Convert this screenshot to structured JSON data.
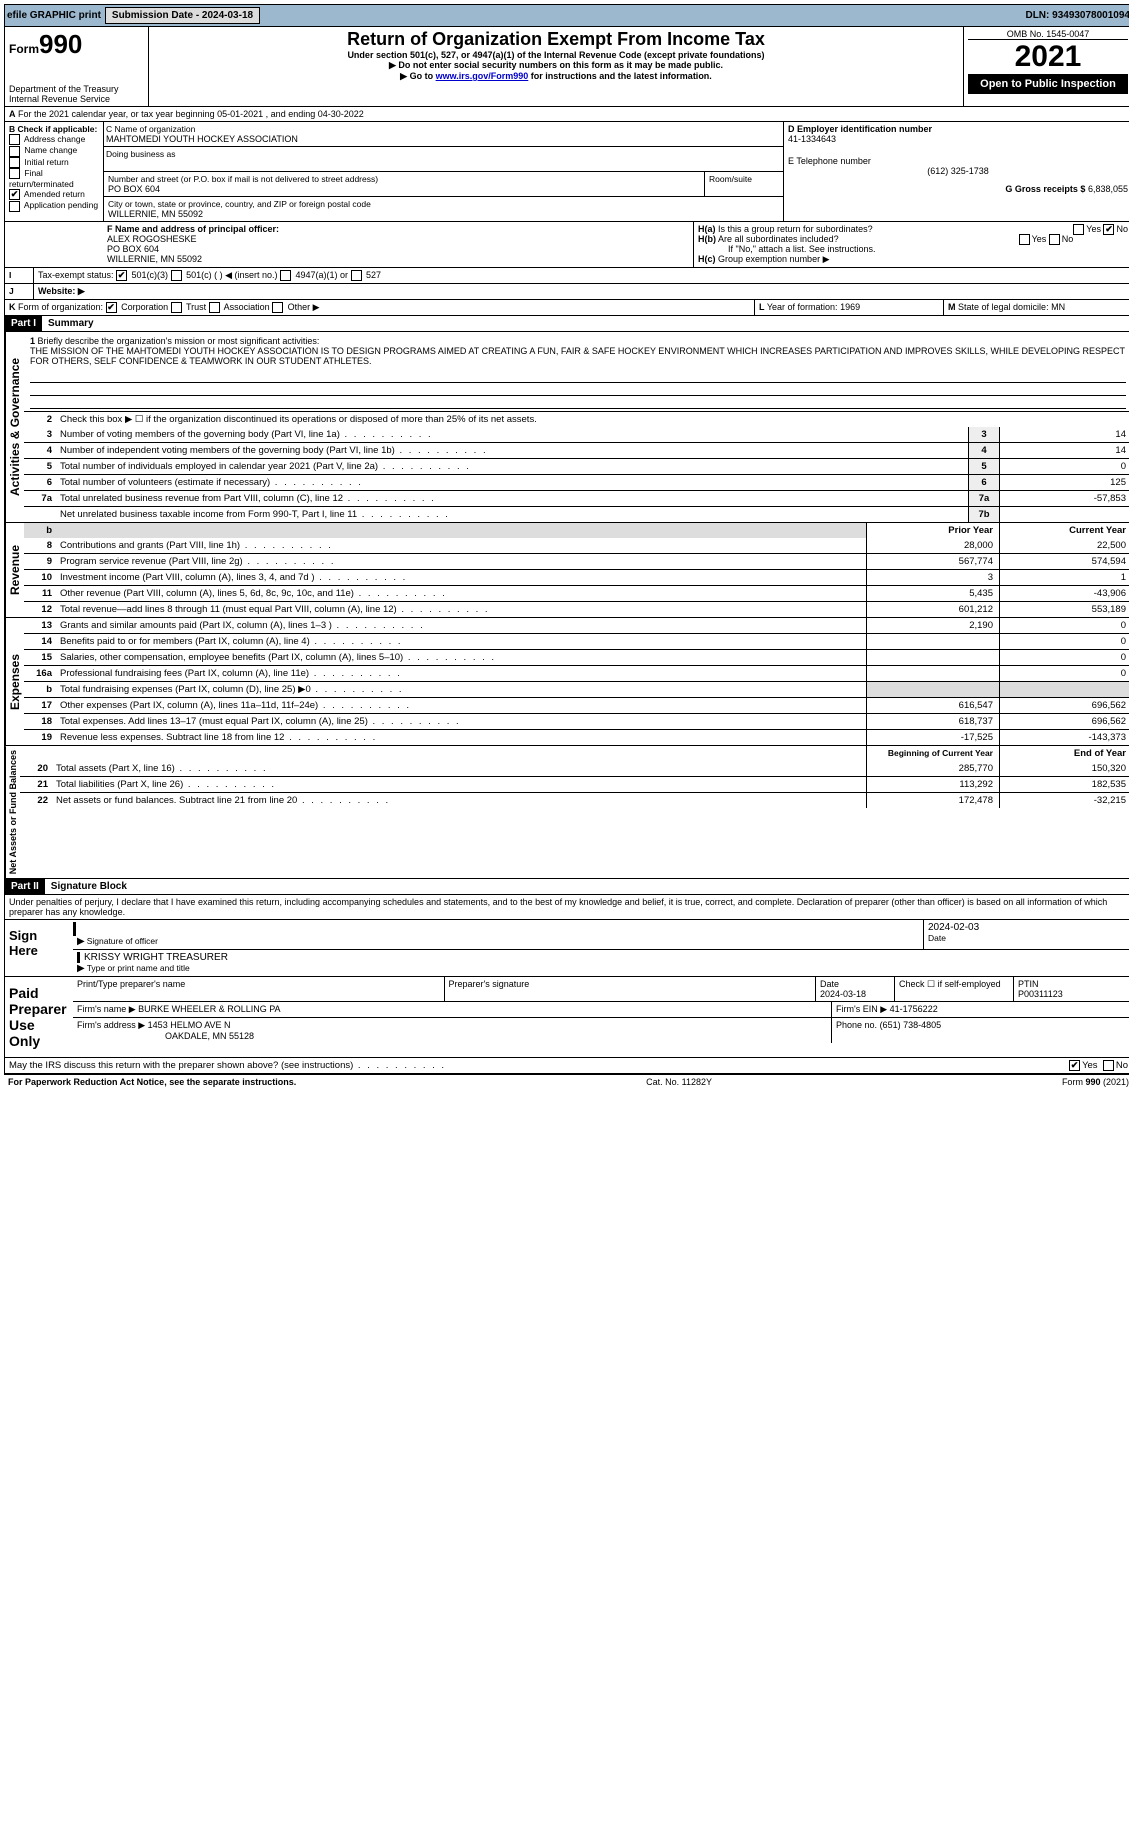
{
  "topbar": {
    "efile": "efile GRAPHIC print",
    "sub_label": "Submission Date - 2024-03-18",
    "dln_label": "DLN: 93493078001094"
  },
  "header": {
    "form_prefix": "Form",
    "form_num": "990",
    "dept": "Department of the Treasury",
    "irs": "Internal Revenue Service",
    "title": "Return of Organization Exempt From Income Tax",
    "sub1": "Under section 501(c), 527, or 4947(a)(1) of the Internal Revenue Code (except private foundations)",
    "sub2": "▶ Do not enter social security numbers on this form as it may be made public.",
    "sub3_pre": "▶ Go to ",
    "sub3_link": "www.irs.gov/Form990",
    "sub3_post": " for instructions and the latest information.",
    "omb": "OMB No. 1545-0047",
    "year": "2021",
    "inspect": "Open to Public Inspection"
  },
  "A": {
    "text": "For the 2021 calendar year, or tax year beginning 05-01-2021    , and ending 04-30-2022"
  },
  "B": {
    "label": "B Check if applicable:",
    "items": [
      "Address change",
      "Name change",
      "Initial return",
      "Final return/terminated",
      "Amended return",
      "Application pending"
    ],
    "checked_idx": 4
  },
  "C": {
    "label": "C Name of organization",
    "name": "MAHTOMEDI YOUTH HOCKEY ASSOCIATION",
    "dba_label": "Doing business as",
    "street_label": "Number and street (or P.O. box if mail is not delivered to street address)",
    "room_label": "Room/suite",
    "street": "PO BOX 604",
    "city_label": "City or town, state or province, country, and ZIP or foreign postal code",
    "city": "WILLERNIE, MN  55092"
  },
  "D": {
    "label": "D Employer identification number",
    "value": "41-1334643"
  },
  "E": {
    "label": "E Telephone number",
    "value": "(612) 325-1738"
  },
  "G": {
    "label": "G Gross receipts $",
    "value": "6,838,055"
  },
  "F": {
    "label": "F  Name and address of principal officer:",
    "name": "ALEX ROGOSHESKE",
    "street": "PO BOX 604",
    "city": "WILLERNIE, MN  55092"
  },
  "H": {
    "a": "Is this a group return for subordinates?",
    "b": "Are all subordinates included?",
    "note": "If \"No,\" attach a list. See instructions.",
    "c": "Group exemption number ▶",
    "yes": "Yes",
    "no": "No"
  },
  "I": {
    "label": "Tax-exempt status:",
    "opts": [
      "501(c)(3)",
      "501(c) (  ) ◀ (insert no.)",
      "4947(a)(1) or",
      "527"
    ],
    "checked_idx": 0
  },
  "J": {
    "label": "Website: ▶"
  },
  "K": {
    "label": "Form of organization:",
    "opts": [
      "Corporation",
      "Trust",
      "Association",
      "Other ▶"
    ],
    "checked_idx": 0
  },
  "L": {
    "label": "Year of formation:",
    "value": "1969"
  },
  "M": {
    "label": "State of legal domicile:",
    "value": "MN"
  },
  "part1": {
    "hdr": "Part I",
    "title": "Summary"
  },
  "summary": {
    "l1_label": "Briefly describe the organization's mission or most significant activities:",
    "mission": "THE MISSION OF THE MAHTOMEDI YOUTH HOCKEY ASSOCIATION IS TO DESIGN PROGRAMS AIMED AT CREATING A FUN, FAIR & SAFE HOCKEY ENVIRONMENT WHICH INCREASES PARTICIPATION AND IMPROVES SKILLS, WHILE DEVELOPING RESPECT FOR OTHERS, SELF CONFIDENCE & TEAMWORK IN OUR STUDENT ATHLETES.",
    "l2": "Check this box ▶ ☐  if the organization discontinued its operations or disposed of more than 25% of its net assets.",
    "lines_ag": [
      {
        "n": "3",
        "t": "Number of voting members of the governing body (Part VI, line 1a)",
        "c": "3",
        "v": "14"
      },
      {
        "n": "4",
        "t": "Number of independent voting members of the governing body (Part VI, line 1b)",
        "c": "4",
        "v": "14"
      },
      {
        "n": "5",
        "t": "Total number of individuals employed in calendar year 2021 (Part V, line 2a)",
        "c": "5",
        "v": "0"
      },
      {
        "n": "6",
        "t": "Total number of volunteers (estimate if necessary)",
        "c": "6",
        "v": "125"
      },
      {
        "n": "7a",
        "t": "Total unrelated business revenue from Part VIII, column (C), line 12",
        "c": "7a",
        "v": "-57,853"
      },
      {
        "n": "",
        "t": "Net unrelated business taxable income from Form 990-T, Part I, line 11",
        "c": "7b",
        "v": ""
      }
    ],
    "col_prior": "Prior Year",
    "col_current": "Current Year",
    "rev": [
      {
        "n": "8",
        "t": "Contributions and grants (Part VIII, line 1h)",
        "p": "28,000",
        "c": "22,500"
      },
      {
        "n": "9",
        "t": "Program service revenue (Part VIII, line 2g)",
        "p": "567,774",
        "c": "574,594"
      },
      {
        "n": "10",
        "t": "Investment income (Part VIII, column (A), lines 3, 4, and 7d )",
        "p": "3",
        "c": "1"
      },
      {
        "n": "11",
        "t": "Other revenue (Part VIII, column (A), lines 5, 6d, 8c, 9c, 10c, and 11e)",
        "p": "5,435",
        "c": "-43,906"
      },
      {
        "n": "12",
        "t": "Total revenue—add lines 8 through 11 (must equal Part VIII, column (A), line 12)",
        "p": "601,212",
        "c": "553,189"
      }
    ],
    "exp": [
      {
        "n": "13",
        "t": "Grants and similar amounts paid (Part IX, column (A), lines 1–3 )",
        "p": "2,190",
        "c": "0"
      },
      {
        "n": "14",
        "t": "Benefits paid to or for members (Part IX, column (A), line 4)",
        "p": "",
        "c": "0"
      },
      {
        "n": "15",
        "t": "Salaries, other compensation, employee benefits (Part IX, column (A), lines 5–10)",
        "p": "",
        "c": "0"
      },
      {
        "n": "16a",
        "t": "Professional fundraising fees (Part IX, column (A), line 11e)",
        "p": "",
        "c": "0"
      },
      {
        "n": "b",
        "t": "Total fundraising expenses (Part IX, column (D), line 25) ▶0",
        "p": null,
        "c": null
      },
      {
        "n": "17",
        "t": "Other expenses (Part IX, column (A), lines 11a–11d, 11f–24e)",
        "p": "616,547",
        "c": "696,562"
      },
      {
        "n": "18",
        "t": "Total expenses. Add lines 13–17 (must equal Part IX, column (A), line 25)",
        "p": "618,737",
        "c": "696,562"
      },
      {
        "n": "19",
        "t": "Revenue less expenses. Subtract line 18 from line 12",
        "p": "-17,525",
        "c": "-143,373"
      }
    ],
    "col_begin": "Beginning of Current Year",
    "col_end": "End of Year",
    "net": [
      {
        "n": "20",
        "t": "Total assets (Part X, line 16)",
        "p": "285,770",
        "c": "150,320"
      },
      {
        "n": "21",
        "t": "Total liabilities (Part X, line 26)",
        "p": "113,292",
        "c": "182,535"
      },
      {
        "n": "22",
        "t": "Net assets or fund balances. Subtract line 21 from line 20",
        "p": "172,478",
        "c": "-32,215"
      }
    ],
    "tab_ag": "Activities & Governance",
    "tab_rev": "Revenue",
    "tab_exp": "Expenses",
    "tab_net": "Net Assets or Fund Balances"
  },
  "part2": {
    "hdr": "Part II",
    "title": "Signature Block",
    "penalty": "Under penalties of perjury, I declare that I have examined this return, including accompanying schedules and statements, and to the best of my knowledge and belief, it is true, correct, and complete. Declaration of preparer (other than officer) is based on all information of which preparer has any knowledge."
  },
  "sign": {
    "here": "Sign Here",
    "sig_officer": "Signature of officer",
    "date": "Date",
    "date_val": "2024-02-03",
    "name_val": "KRISSY WRIGHT TREASURER",
    "name_label": "Type or print name and title"
  },
  "paid": {
    "label": "Paid Preparer Use Only",
    "print_name": "Print/Type preparer's name",
    "prep_sig": "Preparer's signature",
    "date_label": "Date",
    "date_val": "2024-03-18",
    "check_label": "Check ☐ if self-employed",
    "ptin_label": "PTIN",
    "ptin": "P00311123",
    "firm_name_label": "Firm's name    ▶",
    "firm_name": "BURKE WHEELER & ROLLING PA",
    "firm_ein_label": "Firm's EIN ▶",
    "firm_ein": "41-1756222",
    "firm_addr_label": "Firm's address ▶",
    "firm_addr1": "1453 HELMO AVE N",
    "firm_addr2": "OAKDALE, MN  55128",
    "phone_label": "Phone no.",
    "phone": "(651) 738-4805"
  },
  "bottom": {
    "q": "May the IRS discuss this return with the preparer shown above? (see instructions)",
    "yes": "Yes",
    "no": "No"
  },
  "footer": {
    "left": "For Paperwork Reduction Act Notice, see the separate instructions.",
    "mid": "Cat. No. 11282Y",
    "right": "Form 990 (2021)"
  }
}
